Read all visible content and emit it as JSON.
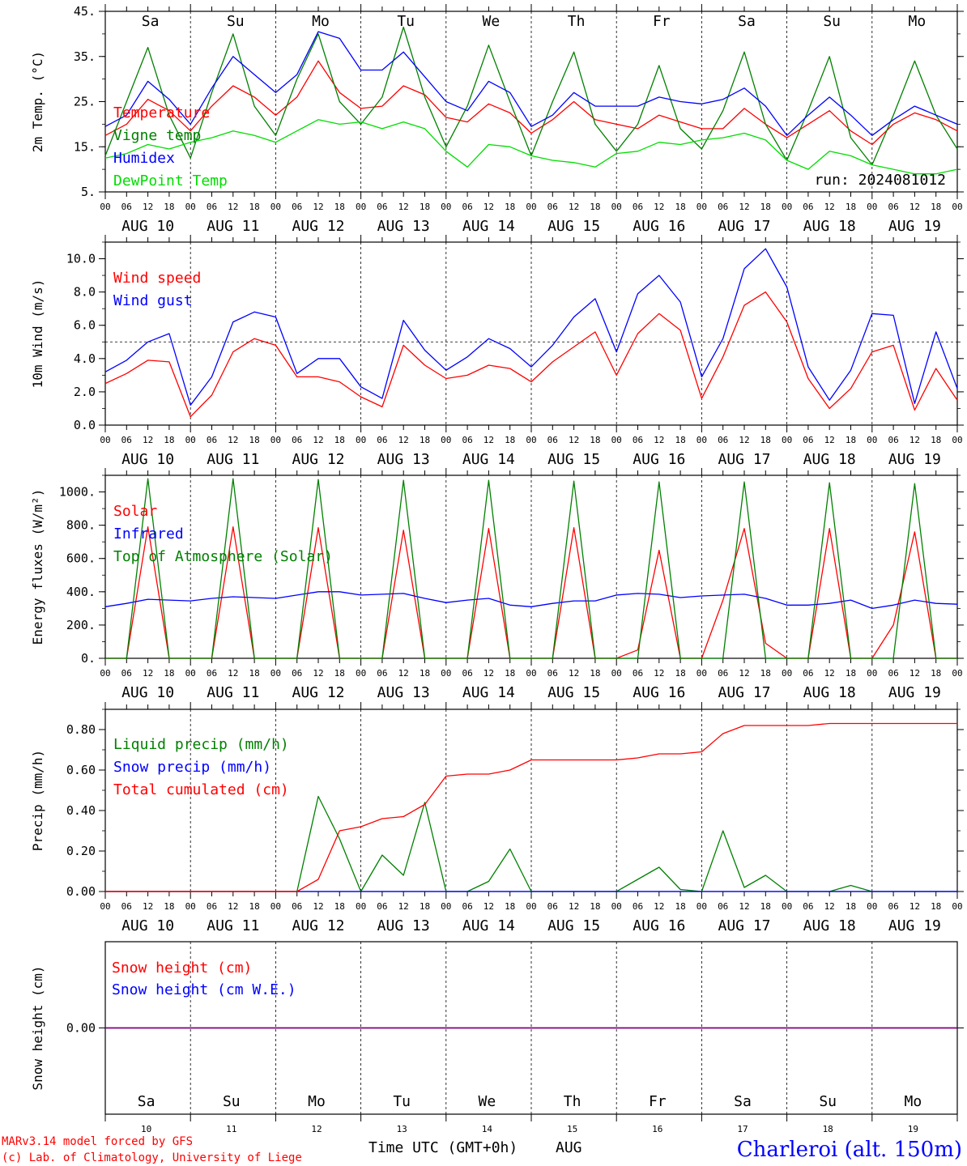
{
  "run": "run: 2024081012",
  "location": "Charleroi (alt. 150m)",
  "credit_line1": "MARv3.14 model forced by GFS",
  "credit_line2": "(c) Lab. of Climatology, University of Liege",
  "xaxis_title": "Time UTC (GMT+0h)",
  "month": "AUG",
  "colors": {
    "red": "#ff0000",
    "blue": "#0000ff",
    "green": "#008000",
    "lightgreen": "#00dd00",
    "purple": "#800080"
  },
  "weekdays": [
    "Sa",
    "Su",
    "Mo",
    "Tu",
    "We",
    "Th",
    "Fr",
    "Sa",
    "Su",
    "Mo"
  ],
  "weekend_flags": [
    true,
    true,
    false,
    false,
    false,
    false,
    false,
    true,
    true,
    false
  ],
  "date_labels": [
    "AUG 10",
    "AUG 11",
    "AUG 12",
    "AUG 13",
    "AUG 14",
    "AUG 15",
    "AUG 16",
    "AUG 17",
    "AUG 18",
    "AUG 19"
  ],
  "day_numbers": [
    "10",
    "11",
    "12",
    "13",
    "14",
    "15",
    "16",
    "17",
    "18",
    "19"
  ],
  "hour_ticks": [
    "00",
    "06",
    "12",
    "18"
  ],
  "last_tick": "00",
  "chart_data": [
    {
      "type": "line",
      "ylabel": "2m Temp. (°C)",
      "ylim": [
        5,
        45
      ],
      "yticks": [
        "5.",
        "15.",
        "25.",
        "35.",
        "45."
      ],
      "x": [
        0,
        6,
        12,
        18,
        24,
        30,
        36,
        42,
        48,
        54,
        60,
        66,
        72,
        78,
        84,
        90,
        96,
        102,
        108,
        114,
        120,
        126,
        132,
        138,
        144,
        150,
        156,
        162,
        168,
        174,
        180,
        186,
        192,
        198,
        204,
        210,
        216,
        222,
        228,
        234,
        240
      ],
      "series": [
        {
          "name": "Temperature",
          "color": "#ff0000",
          "values": [
            17.5,
            20,
            25.5,
            23,
            18.5,
            24,
            28.5,
            26,
            22,
            26,
            34,
            27,
            23.5,
            24,
            28.5,
            26.5,
            21.5,
            20.5,
            24.5,
            22.5,
            18,
            21,
            25,
            21,
            20,
            19,
            22,
            20.5,
            19,
            19,
            23.5,
            20,
            17,
            20,
            23,
            18.5,
            15.5,
            20,
            22.5,
            21,
            18.5
          ]
        },
        {
          "name": "Vigne temp",
          "color": "#008000",
          "values": [
            13,
            25,
            37,
            22,
            12.5,
            27,
            40,
            24,
            17.5,
            30,
            40,
            25,
            20,
            26,
            41.5,
            26,
            15,
            24,
            37.5,
            25,
            13,
            25,
            36,
            20,
            14,
            20,
            33,
            19,
            14.5,
            23,
            36,
            20,
            12,
            23,
            35,
            17,
            11,
            22,
            34,
            22,
            14.5
          ]
        },
        {
          "name": "Humidex",
          "color": "#0000ff",
          "values": [
            19.5,
            22,
            29.5,
            25.5,
            20,
            28,
            35,
            31,
            27,
            31,
            40.5,
            39,
            32,
            32,
            36,
            30.5,
            25,
            23,
            29.5,
            27,
            19.5,
            22,
            27,
            24,
            24,
            24,
            26,
            25,
            24.5,
            25.5,
            28,
            24,
            17.5,
            22,
            26,
            22,
            17.5,
            21,
            24,
            22,
            20
          ]
        },
        {
          "name": "DewPoint Temp",
          "color": "#00dd00",
          "values": [
            12.5,
            13.5,
            15.5,
            14.5,
            16,
            17,
            18.5,
            17.5,
            16,
            18.5,
            21,
            20,
            20.5,
            19,
            20.5,
            19,
            14,
            10.5,
            15.5,
            15,
            13,
            12,
            11.5,
            10.5,
            13.5,
            14,
            16,
            15.5,
            16.5,
            17,
            18,
            16.5,
            12,
            10,
            14,
            13,
            11,
            10,
            9,
            9,
            10
          ]
        }
      ]
    },
    {
      "type": "line",
      "ylabel": "10m Wind (m/s)",
      "ylim": [
        0,
        11
      ],
      "yticks": [
        "0.0",
        "2.0",
        "4.0",
        "6.0",
        "8.0",
        "10.0"
      ],
      "reference_line": 5,
      "x": [
        0,
        6,
        12,
        18,
        24,
        30,
        36,
        42,
        48,
        54,
        60,
        66,
        72,
        78,
        84,
        90,
        96,
        102,
        108,
        114,
        120,
        126,
        132,
        138,
        144,
        150,
        156,
        162,
        168,
        174,
        180,
        186,
        192,
        198,
        204,
        210,
        216,
        222,
        228,
        234,
        240
      ],
      "series": [
        {
          "name": "Wind speed",
          "color": "#ff0000",
          "values": [
            2.5,
            3.1,
            3.9,
            3.8,
            0.5,
            1.8,
            4.4,
            5.2,
            4.8,
            2.9,
            2.9,
            2.6,
            1.7,
            1.1,
            4.8,
            3.6,
            2.8,
            3.0,
            3.6,
            3.4,
            2.6,
            3.8,
            4.7,
            5.6,
            3.0,
            5.5,
            6.7,
            5.7,
            1.6,
            4.1,
            7.2,
            8.0,
            6.2,
            2.8,
            1.0,
            2.2,
            4.4,
            4.8,
            0.9,
            3.4,
            1.5
          ]
        },
        {
          "name": "Wind gust",
          "color": "#0000ff",
          "values": [
            3.2,
            3.9,
            5.0,
            5.5,
            1.2,
            2.9,
            6.2,
            6.8,
            6.5,
            3.1,
            4.0,
            4.0,
            2.3,
            1.6,
            6.3,
            4.5,
            3.3,
            4.1,
            5.2,
            4.6,
            3.5,
            4.8,
            6.5,
            7.6,
            4.4,
            7.9,
            9.0,
            7.4,
            2.9,
            5.2,
            9.4,
            10.6,
            8.3,
            3.5,
            1.5,
            3.3,
            6.7,
            6.6,
            1.3,
            5.6,
            2.2
          ]
        }
      ]
    },
    {
      "type": "line",
      "ylabel": "Energy fluxes (W/m²)",
      "ylim": [
        0,
        1100
      ],
      "yticks": [
        "0.",
        "200.",
        "400.",
        "600.",
        "800.",
        "1000."
      ],
      "x": [
        0,
        6,
        12,
        18,
        24,
        30,
        36,
        42,
        48,
        54,
        60,
        66,
        72,
        78,
        84,
        90,
        96,
        102,
        108,
        114,
        120,
        126,
        132,
        138,
        144,
        150,
        156,
        162,
        168,
        174,
        180,
        186,
        192,
        198,
        204,
        210,
        216,
        222,
        228,
        234,
        240
      ],
      "series": [
        {
          "name": "Solar",
          "color": "#ff0000",
          "values": [
            0,
            0,
            790,
            0,
            0,
            0,
            790,
            0,
            0,
            0,
            785,
            0,
            0,
            0,
            770,
            0,
            0,
            0,
            780,
            0,
            0,
            0,
            785,
            0,
            0,
            50,
            650,
            0,
            0,
            350,
            780,
            90,
            0,
            0,
            780,
            0,
            0,
            200,
            760,
            0,
            0
          ]
        },
        {
          "name": "Infrared",
          "color": "#0000ff",
          "values": [
            310,
            330,
            355,
            350,
            345,
            360,
            370,
            365,
            360,
            380,
            400,
            400,
            380,
            385,
            390,
            360,
            335,
            350,
            360,
            320,
            310,
            330,
            345,
            345,
            380,
            390,
            385,
            365,
            375,
            380,
            385,
            360,
            320,
            320,
            330,
            350,
            300,
            320,
            350,
            330,
            325
          ]
        },
        {
          "name": "Top of Atmosphere (Solar)",
          "color": "#008000",
          "values": [
            0,
            0,
            1080,
            0,
            0,
            0,
            1080,
            0,
            0,
            0,
            1075,
            0,
            0,
            0,
            1070,
            0,
            0,
            0,
            1070,
            0,
            0,
            0,
            1065,
            0,
            0,
            0,
            1060,
            0,
            0,
            0,
            1060,
            0,
            0,
            0,
            1055,
            0,
            0,
            0,
            1050,
            0,
            0
          ]
        }
      ]
    },
    {
      "type": "line",
      "ylabel": "Precip (mm/h)",
      "ylim": [
        0,
        0.9
      ],
      "yticks": [
        "0.00",
        "0.20",
        "0.40",
        "0.60",
        "0.80"
      ],
      "x": [
        0,
        6,
        12,
        18,
        24,
        30,
        36,
        42,
        48,
        54,
        60,
        66,
        72,
        78,
        84,
        90,
        96,
        102,
        108,
        114,
        120,
        126,
        132,
        138,
        144,
        150,
        156,
        162,
        168,
        174,
        180,
        186,
        192,
        198,
        204,
        210,
        216,
        222,
        228,
        234,
        240
      ],
      "series": [
        {
          "name": "Liquid precip (mm/h)",
          "color": "#008000",
          "values": [
            0,
            0,
            0,
            0,
            0,
            0,
            0,
            0,
            0,
            0,
            0.47,
            0.26,
            0.0,
            0.18,
            0.08,
            0.44,
            0.0,
            0,
            0.05,
            0.21,
            0,
            0,
            0,
            0,
            0,
            0.06,
            0.12,
            0.01,
            0,
            0.3,
            0.02,
            0.08,
            0,
            0,
            0,
            0.03,
            0,
            0,
            0,
            0,
            0
          ]
        },
        {
          "name": "Snow precip (mm/h)",
          "color": "#0000ff",
          "values": [
            0,
            0,
            0,
            0,
            0,
            0,
            0,
            0,
            0,
            0,
            0,
            0,
            0,
            0,
            0,
            0,
            0,
            0,
            0,
            0,
            0,
            0,
            0,
            0,
            0,
            0,
            0,
            0,
            0,
            0,
            0,
            0,
            0,
            0,
            0,
            0,
            0,
            0,
            0,
            0,
            0
          ]
        },
        {
          "name": "Total cumulated (cm)",
          "color": "#ff0000",
          "values": [
            0,
            0,
            0,
            0,
            0,
            0,
            0,
            0,
            0,
            0,
            0.06,
            0.3,
            0.32,
            0.36,
            0.37,
            0.43,
            0.57,
            0.58,
            0.58,
            0.6,
            0.65,
            0.65,
            0.65,
            0.65,
            0.65,
            0.66,
            0.68,
            0.68,
            0.69,
            0.78,
            0.82,
            0.82,
            0.82,
            0.82,
            0.83,
            0.83,
            0.83,
            0.83,
            0.83,
            0.83,
            0.83
          ]
        }
      ]
    },
    {
      "type": "line",
      "ylabel": "Snow height (cm)",
      "ylim": [
        -1,
        1
      ],
      "yticks": [
        "0.00"
      ],
      "x": [
        0,
        240
      ],
      "series": [
        {
          "name": "Snow height (cm)",
          "color": "#ff0000",
          "values": [
            0,
            0
          ]
        },
        {
          "name": "Snow height (cm W.E.)",
          "color": "#0000ff",
          "values": [
            0,
            0
          ]
        }
      ]
    }
  ]
}
